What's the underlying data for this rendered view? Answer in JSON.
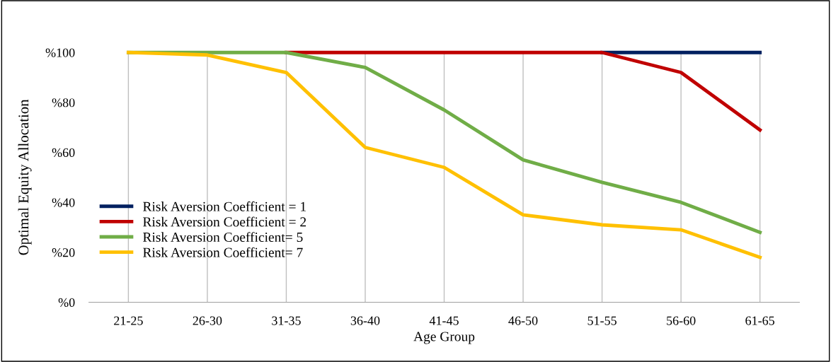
{
  "chart_data": {
    "type": "line",
    "xlabel": "Age Group",
    "ylabel": "Optimal Equity Allocation",
    "categories": [
      "21-25",
      "26-30",
      "31-35",
      "36-40",
      "41-45",
      "46-50",
      "51-55",
      "56-60",
      "61-65"
    ],
    "series": [
      {
        "name": "Risk Aversion Coefficient = 1",
        "color": "#002060",
        "values": [
          null,
          null,
          null,
          null,
          null,
          null,
          100,
          100,
          100
        ]
      },
      {
        "name": "Risk Aversion Coefficient = 2",
        "color": "#c00000",
        "values": [
          null,
          null,
          100,
          100,
          100,
          100,
          100,
          92,
          69
        ]
      },
      {
        "name": "Risk Aversion Coefficient= 5",
        "color": "#70ad47",
        "values": [
          100,
          100,
          100,
          94,
          77,
          57,
          48,
          40,
          28
        ]
      },
      {
        "name": "Risk Aversion Coefficient= 7",
        "color": "#ffc000",
        "values": [
          100,
          99,
          92,
          62,
          54,
          35,
          31,
          29,
          18
        ]
      }
    ],
    "ylim": [
      0,
      100
    ],
    "yticks": [
      {
        "value": 0,
        "label": "%0"
      },
      {
        "value": 20,
        "label": "%20"
      },
      {
        "value": 40,
        "label": "%40"
      },
      {
        "value": 60,
        "label": "%60"
      },
      {
        "value": 80,
        "label": "%80"
      },
      {
        "value": 100,
        "label": "%100"
      }
    ],
    "grid": "x",
    "legend": "bottom left",
    "marker": "none",
    "line_style": "solid"
  }
}
